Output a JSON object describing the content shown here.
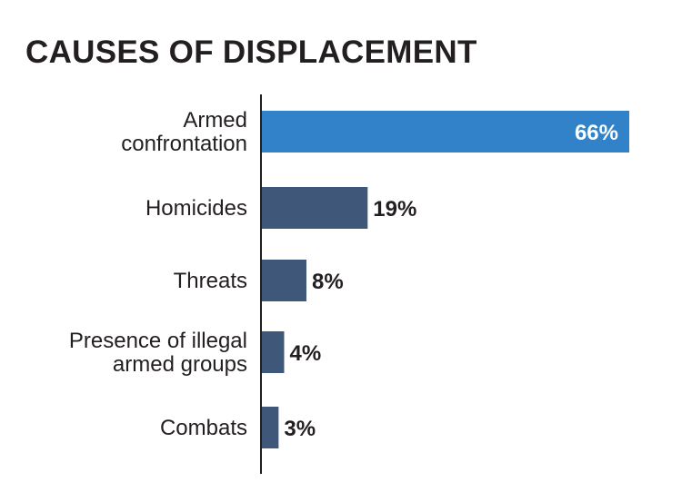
{
  "chart_data": {
    "type": "bar",
    "orientation": "horizontal",
    "title": "CAUSES OF DISPLACEMENT",
    "xlabel": "",
    "ylabel": "",
    "xlim": [
      0,
      66
    ],
    "grid": false,
    "legend": "none",
    "categories": [
      "Armed confrontation",
      "Homicides",
      "Threats",
      "Presence of illegal armed groups",
      "Combats"
    ],
    "category_lines": [
      [
        "Armed",
        "confrontation"
      ],
      [
        "Homicides"
      ],
      [
        "Threats"
      ],
      [
        "Presence of illegal",
        "armed groups"
      ],
      [
        "Combats"
      ]
    ],
    "values": [
      66,
      19,
      8,
      4,
      3
    ],
    "value_labels": [
      "66%",
      "19%",
      "8%",
      "4%",
      "3%"
    ],
    "colors": {
      "highlight": "#3182c8",
      "default": "#3f5779",
      "axis": "#231f20",
      "text": "#231f20",
      "highlight_label": "#ffffff"
    },
    "highlight_index": 0
  }
}
